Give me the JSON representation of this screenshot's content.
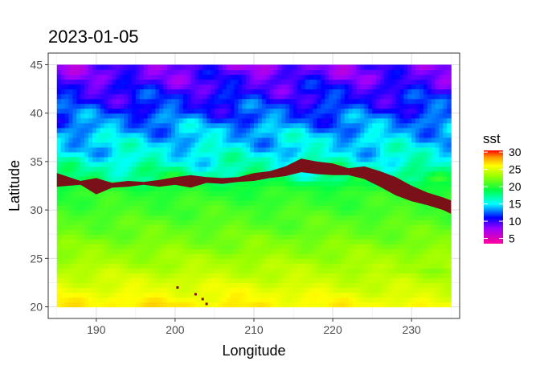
{
  "chart_data": {
    "type": "heatmap",
    "title": "2023-01-05",
    "xlabel": "Longitude",
    "ylabel": "Latitude",
    "xlim": [
      183.9,
      236.1
    ],
    "ylim": [
      18.8,
      46.2
    ],
    "x_ticks": [
      190,
      200,
      210,
      220,
      230
    ],
    "y_ticks": [
      20,
      25,
      30,
      35,
      40,
      45
    ],
    "x_extent": [
      185,
      235
    ],
    "y_extent": [
      20,
      45
    ],
    "grid": true,
    "legend": {
      "title": "sst",
      "position": "right",
      "range": [
        3.5,
        30.5
      ],
      "ticks": [
        5,
        10,
        15,
        20,
        25,
        30
      ],
      "color_stops": [
        {
          "value": 3.5,
          "color": "#ff0099"
        },
        {
          "value": 8,
          "color": "#9900ff"
        },
        {
          "value": 11,
          "color": "#0000ff"
        },
        {
          "value": 15,
          "color": "#00ffff"
        },
        {
          "value": 19,
          "color": "#00ff44"
        },
        {
          "value": 23,
          "color": "#99ff00"
        },
        {
          "value": 26,
          "color": "#ffff00"
        },
        {
          "value": 28.5,
          "color": "#ff9900"
        },
        {
          "value": 30.5,
          "color": "#ff0000"
        }
      ]
    },
    "sst_profile": {
      "latitudes": [
        20,
        22,
        24,
        26,
        28,
        30,
        32,
        34,
        35,
        36,
        38,
        40,
        42,
        43.5,
        45
      ],
      "values": [
        26.5,
        25.2,
        23.8,
        22.6,
        21.6,
        20.8,
        20.0,
        17.0,
        16.0,
        15.0,
        14.0,
        12.0,
        10.5,
        9.5,
        8.5
      ]
    },
    "missing_band": {
      "color": "#7a1119",
      "longitudes": [
        185,
        188,
        190,
        192,
        194,
        196,
        198,
        200,
        202,
        204,
        206,
        208,
        210,
        212,
        214,
        216,
        218,
        220,
        222,
        224,
        226,
        228,
        230,
        232,
        234,
        235
      ],
      "top": [
        33.8,
        33.0,
        33.3,
        32.8,
        33.0,
        32.9,
        33.1,
        33.4,
        33.6,
        33.4,
        33.3,
        33.4,
        33.8,
        34.0,
        34.5,
        35.3,
        35.0,
        34.8,
        34.3,
        34.5,
        34.0,
        33.4,
        32.5,
        31.8,
        31.3,
        31.0
      ],
      "bottom": [
        32.4,
        32.6,
        31.6,
        32.3,
        32.4,
        32.6,
        32.4,
        32.6,
        32.3,
        32.8,
        32.7,
        32.9,
        33.0,
        33.3,
        33.5,
        33.9,
        33.7,
        33.6,
        33.6,
        33.2,
        32.4,
        31.5,
        30.9,
        30.5,
        30.0,
        29.6
      ]
    },
    "missing_spots": [
      {
        "lon": 200.3,
        "lat": 22.0
      },
      {
        "lon": 202.6,
        "lat": 21.3
      },
      {
        "lon": 203.5,
        "lat": 20.8
      },
      {
        "lon": 204.0,
        "lat": 20.3
      }
    ]
  }
}
